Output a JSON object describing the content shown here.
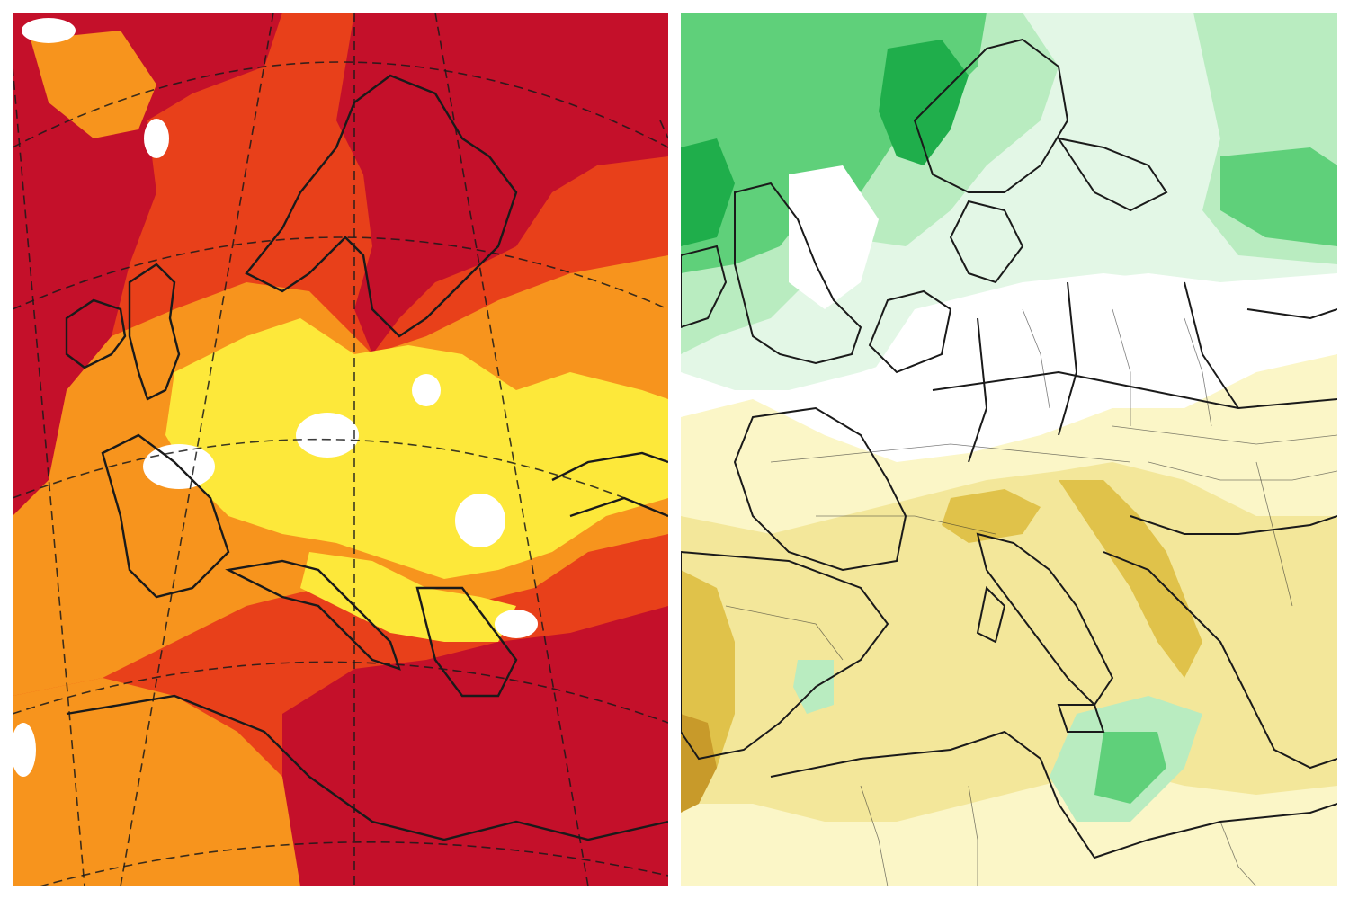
{
  "panels": [
    {
      "id": "temperature-anomaly",
      "description_kind": "forecast-map",
      "colors": {
        "deep": "#c4102a",
        "red": "#e8401a",
        "orange": "#f7941d",
        "yellow": "#fde83a",
        "pale": "#ffffff",
        "coast": "#1a1a1a"
      }
    },
    {
      "id": "precipitation-anomaly",
      "description_kind": "forecast-map",
      "colors": {
        "green_dark": "#1fae4b",
        "green": "#5fd07a",
        "green_light": "#b9ecc0",
        "green_pale": "#e3f7e6",
        "white": "#ffffff",
        "yellow_pale": "#fbf6c7",
        "yellow": "#f3e79a",
        "mustard": "#e0c24a",
        "brown": "#c89a2a",
        "coast": "#1a1a1a"
      }
    }
  ]
}
